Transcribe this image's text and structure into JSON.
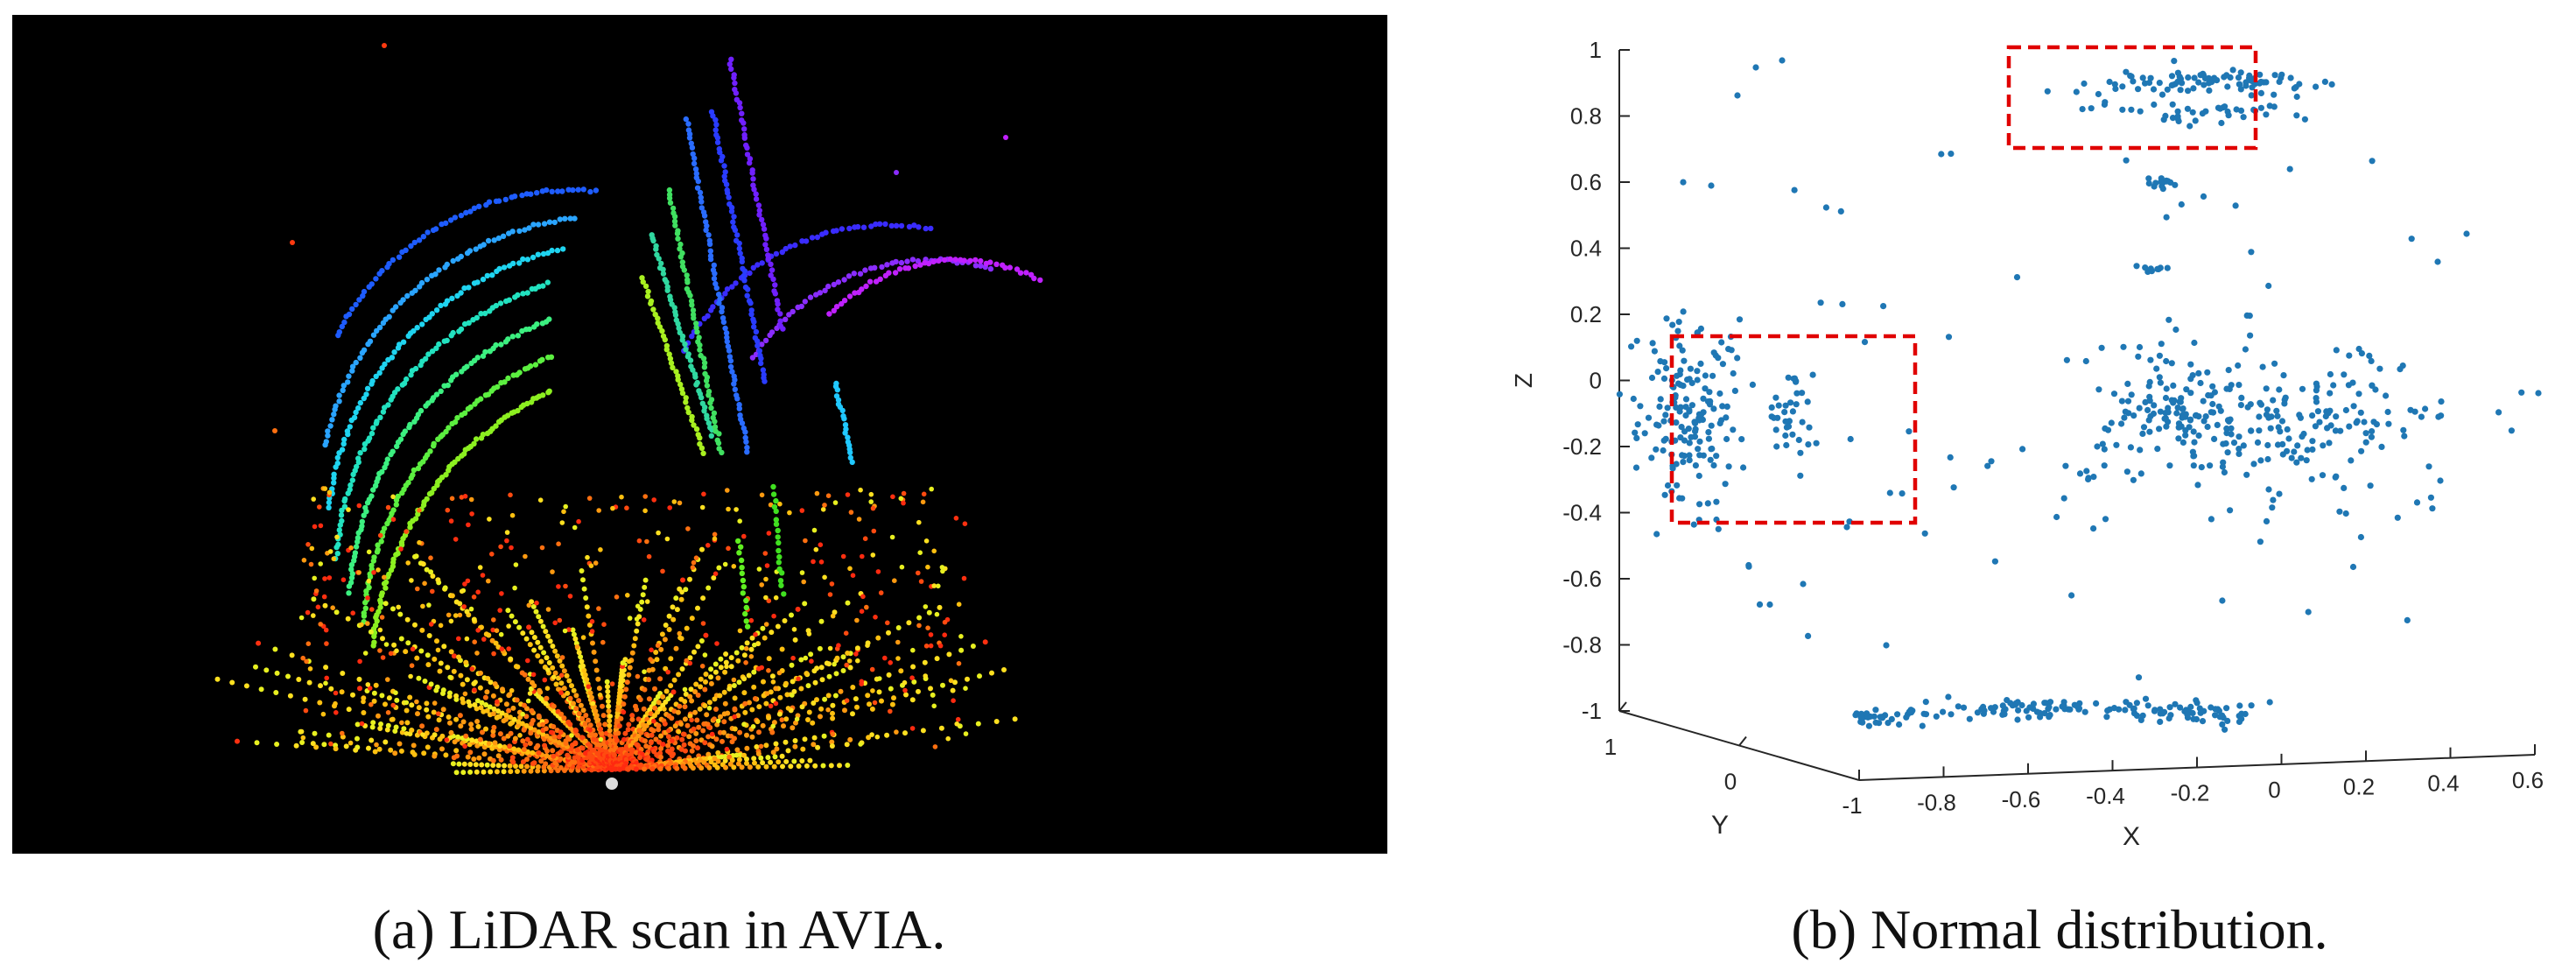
{
  "figure": {
    "panels": [
      {
        "id": "a",
        "caption": "(a) LiDAR scan in AVIA.",
        "kind": "point-cloud-render",
        "background": "#000000"
      },
      {
        "id": "b",
        "caption": "(b) Normal distribution.",
        "kind": "3d-scatter",
        "marker_color": "#1f77b4",
        "highlight_color": "#e00000"
      }
    ]
  },
  "chart_data": {
    "type": "scatter",
    "xlabel": "X",
    "ylabel": "Y",
    "zlabel": "Z",
    "xlim": [
      -1,
      0.6
    ],
    "ylim": [
      -1,
      1
    ],
    "zlim": [
      -1,
      1
    ],
    "x_ticks": [
      "-1",
      "-0.8",
      "-0.6",
      "-0.4",
      "-0.2",
      "0",
      "0.2",
      "0.4",
      "0.6"
    ],
    "y_ticks": [
      "1",
      "0"
    ],
    "z_ticks": [
      "1",
      "0.8",
      "0.6",
      "0.4",
      "0.2",
      "0",
      "-0.2",
      "-0.4",
      "-0.6",
      "-0.8",
      "-1"
    ],
    "grid": false,
    "highlighted_regions": [
      {
        "description": "cluster near Z = 0.85",
        "z_range": [
          0.7,
          0.95
        ]
      },
      {
        "description": "cluster near Z = -0.1",
        "z_range": [
          -0.45,
          0.12
        ]
      }
    ]
  }
}
